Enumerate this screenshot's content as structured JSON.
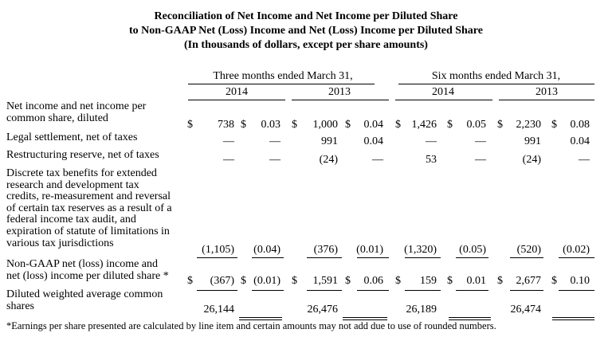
{
  "title": {
    "line1": "Reconciliation of Net Income and Net Income per Diluted Share",
    "line2": "to Non-GAAP Net (Loss) Income and Net (Loss) Income per Diluted Share",
    "line3": "(In thousands of dollars, except per share amounts)"
  },
  "periods": {
    "three": "Three months ended March 31,",
    "six": "Six months ended March 31,"
  },
  "years": [
    "2014",
    "2013",
    "2014",
    "2013"
  ],
  "rows": [
    {
      "label_lines": [
        "Net income and net income per",
        "common share, diluted"
      ],
      "cur": [
        "$",
        "$",
        "$",
        "$",
        "$",
        "$",
        "$",
        "$"
      ],
      "values": [
        "738",
        "0.03",
        "1,000",
        "0.04",
        "1,426",
        "0.05",
        "2,230",
        "0.08"
      ]
    },
    {
      "label_lines": [
        "Legal settlement, net of taxes"
      ],
      "cur": [
        "",
        "",
        "",
        "",
        "",
        "",
        "",
        ""
      ],
      "values": [
        "—",
        "—",
        "991",
        "0.04",
        "—",
        "—",
        "991",
        "0.04"
      ]
    },
    {
      "label_lines": [
        "Restructuring reserve, net of taxes"
      ],
      "cur": [
        "",
        "",
        "",
        "",
        "",
        "",
        "",
        ""
      ],
      "values": [
        "—",
        "—",
        "(24)",
        "—",
        "53",
        "—",
        "(24)",
        "—"
      ]
    },
    {
      "label_lines": [
        "Discrete tax benefits for extended",
        "research and development tax",
        "credits, re-measurement and reversal",
        "of certain tax reserves as a result of a",
        "federal income tax audit, and",
        "expiration of statute of limitations in",
        "various tax jurisdictions"
      ],
      "cur": [
        "",
        "",
        "",
        "",
        "",
        "",
        "",
        ""
      ],
      "values": [
        "(1,105)",
        "(0.04)",
        "(376)",
        "(0.01)",
        "(1,320)",
        "(0.05)",
        "(520)",
        "(0.02)"
      ]
    },
    {
      "label_lines": [
        "Non-GAAP net (loss) income and",
        "net (loss) income per diluted share *"
      ],
      "cur": [
        "$",
        "$",
        "$",
        "$",
        "$",
        "$",
        "$",
        "$"
      ],
      "values": [
        "(367)",
        "(0.01)",
        "1,591",
        "0.06",
        "159",
        "0.01",
        "2,677",
        "0.10"
      ]
    },
    {
      "label_lines": [
        "Diluted weighted average common",
        "shares"
      ],
      "cur": [
        "",
        "",
        "",
        "",
        "",
        "",
        "",
        ""
      ],
      "values": [
        "26,144",
        "",
        "26,476",
        "",
        "26,189",
        "",
        "26,474",
        ""
      ]
    }
  ],
  "footnote": "*Earnings per share presented are calculated by line item and certain amounts may not add due to use of rounded numbers."
}
